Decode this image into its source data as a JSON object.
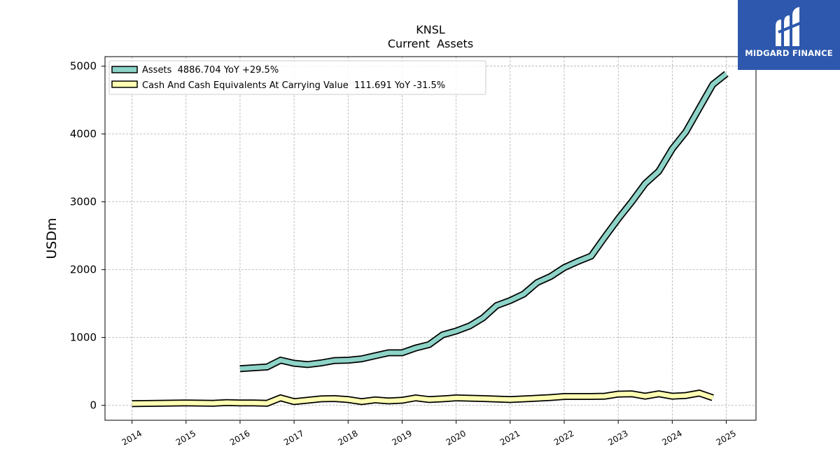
{
  "chart_data": {
    "type": "line",
    "title": "KNSL",
    "subtitle": "Current  Assets",
    "ylabel": "USDm",
    "xlabel": "",
    "xlim": [
      2013.5,
      2025.55
    ],
    "ylim": [
      -220,
      5140
    ],
    "y_ticks": [
      0,
      1000,
      2000,
      3000,
      4000,
      5000
    ],
    "x_ticks": [
      2014,
      2015,
      2016,
      2017,
      2018,
      2019,
      2020,
      2021,
      2022,
      2023,
      2024,
      2025
    ],
    "grid": true,
    "legend_position": "top-left",
    "series": [
      {
        "name": "Assets  4886.704 YoY +29.5%",
        "color": "#8dd3c7",
        "points": [
          [
            2016.0,
            540
          ],
          [
            2016.5,
            565
          ],
          [
            2016.75,
            665
          ],
          [
            2017.0,
            620
          ],
          [
            2017.25,
            600
          ],
          [
            2017.5,
            625
          ],
          [
            2017.75,
            660
          ],
          [
            2018.0,
            665
          ],
          [
            2018.25,
            685
          ],
          [
            2018.5,
            730
          ],
          [
            2018.75,
            775
          ],
          [
            2019.0,
            775
          ],
          [
            2019.25,
            845
          ],
          [
            2019.5,
            895
          ],
          [
            2019.75,
            1040
          ],
          [
            2020.0,
            1095
          ],
          [
            2020.25,
            1170
          ],
          [
            2020.5,
            1290
          ],
          [
            2020.75,
            1470
          ],
          [
            2021.0,
            1545
          ],
          [
            2021.25,
            1640
          ],
          [
            2021.5,
            1810
          ],
          [
            2021.75,
            1900
          ],
          [
            2022.0,
            2030
          ],
          [
            2022.25,
            2120
          ],
          [
            2022.5,
            2200
          ],
          [
            2022.75,
            2480
          ],
          [
            2023.0,
            2750
          ],
          [
            2023.25,
            3000
          ],
          [
            2023.5,
            3270
          ],
          [
            2023.75,
            3450
          ],
          [
            2024.0,
            3780
          ],
          [
            2024.25,
            4030
          ],
          [
            2024.5,
            4380
          ],
          [
            2024.75,
            4730
          ],
          [
            2025.0,
            4887
          ]
        ]
      },
      {
        "name": "Cash And Cash Equivalents At Carrying Value  111.691 YoY -31.5%",
        "color": "#ffffb3",
        "points": [
          [
            2014.0,
            25
          ],
          [
            2014.5,
            30
          ],
          [
            2015.0,
            35
          ],
          [
            2015.5,
            30
          ],
          [
            2015.75,
            40
          ],
          [
            2016.0,
            35
          ],
          [
            2016.25,
            35
          ],
          [
            2016.5,
            30
          ],
          [
            2016.75,
            110
          ],
          [
            2017.0,
            55
          ],
          [
            2017.25,
            75
          ],
          [
            2017.5,
            95
          ],
          [
            2017.75,
            100
          ],
          [
            2018.0,
            85
          ],
          [
            2018.25,
            55
          ],
          [
            2018.5,
            80
          ],
          [
            2018.75,
            65
          ],
          [
            2019.0,
            75
          ],
          [
            2019.25,
            110
          ],
          [
            2019.5,
            85
          ],
          [
            2019.75,
            95
          ],
          [
            2020.0,
            110
          ],
          [
            2020.5,
            100
          ],
          [
            2021.0,
            85
          ],
          [
            2021.5,
            105
          ],
          [
            2021.75,
            115
          ],
          [
            2022.0,
            130
          ],
          [
            2022.5,
            130
          ],
          [
            2022.75,
            135
          ],
          [
            2023.0,
            165
          ],
          [
            2023.25,
            170
          ],
          [
            2023.5,
            135
          ],
          [
            2023.75,
            170
          ],
          [
            2024.0,
            135
          ],
          [
            2024.25,
            145
          ],
          [
            2024.5,
            180
          ],
          [
            2024.75,
            112
          ]
        ]
      }
    ]
  },
  "logo": {
    "text": "MIDGARD FINANCE",
    "background": "#2d58ad",
    "icon": "midgard-logo-icon"
  }
}
